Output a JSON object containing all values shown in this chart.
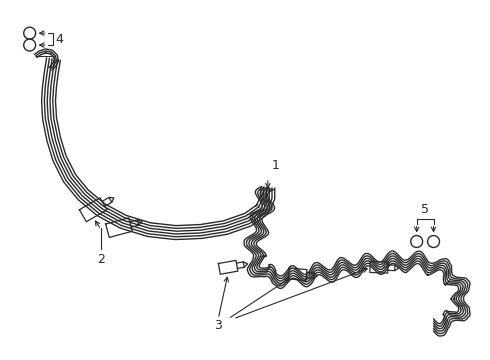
{
  "background_color": "#ffffff",
  "line_color": "#2a2a2a",
  "line_width": 1.0,
  "label_fontsize": 9,
  "figsize": [
    4.9,
    3.6
  ],
  "dpi": 100
}
